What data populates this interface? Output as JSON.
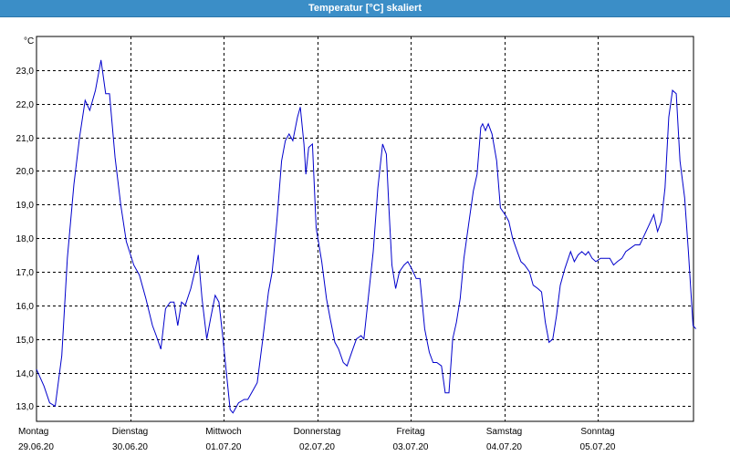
{
  "window": {
    "title": "Temperatur [°C] skaliert"
  },
  "chart_data": {
    "type": "line",
    "title": "Temperatur [°C] skaliert",
    "ylabel": "°C",
    "xlabel": "",
    "ylim": [
      12.55,
      24.0
    ],
    "xlim": [
      0,
      7.0
    ],
    "y_ticks": [
      "13,0",
      "14,0",
      "15,0",
      "16,0",
      "17,0",
      "18,0",
      "19,0",
      "20,0",
      "21,0",
      "22,0",
      "23,0"
    ],
    "x_ticks": [
      {
        "day": "Montag",
        "date": "29.06.20"
      },
      {
        "day": "Dienstag",
        "date": "30.06.20"
      },
      {
        "day": "Mittwoch",
        "date": "01.07.20"
      },
      {
        "day": "Donnerstag",
        "date": "02.07.20"
      },
      {
        "day": "Freitag",
        "date": "03.07.20"
      },
      {
        "day": "Samstag",
        "date": "04.07.20"
      },
      {
        "day": "Sonntag",
        "date": "05.07.20"
      }
    ],
    "grid": true,
    "colors": {
      "line": "#0000cc",
      "grid": "#000000"
    },
    "series": [
      {
        "points": [
          [
            0.0,
            14.1
          ],
          [
            0.08,
            13.6
          ],
          [
            0.14,
            13.1
          ],
          [
            0.2,
            13.0
          ],
          [
            0.27,
            14.5
          ],
          [
            0.33,
            17.4
          ],
          [
            0.4,
            19.6
          ],
          [
            0.46,
            21.0
          ],
          [
            0.52,
            22.1
          ],
          [
            0.57,
            21.8
          ],
          [
            0.63,
            22.4
          ],
          [
            0.69,
            23.3
          ],
          [
            0.74,
            22.3
          ],
          [
            0.78,
            22.3
          ],
          [
            0.84,
            20.4
          ],
          [
            0.9,
            19.0
          ],
          [
            0.96,
            17.9
          ],
          [
            1.04,
            17.2
          ],
          [
            1.1,
            16.9
          ],
          [
            1.17,
            16.2
          ],
          [
            1.24,
            15.4
          ],
          [
            1.28,
            15.1
          ],
          [
            1.33,
            14.7
          ],
          [
            1.38,
            15.9
          ],
          [
            1.43,
            16.1
          ],
          [
            1.47,
            16.1
          ],
          [
            1.51,
            15.4
          ],
          [
            1.55,
            16.1
          ],
          [
            1.59,
            16.0
          ],
          [
            1.65,
            16.5
          ],
          [
            1.7,
            17.1
          ],
          [
            1.73,
            17.5
          ],
          [
            1.77,
            16.2
          ],
          [
            1.82,
            15.0
          ],
          [
            1.86,
            15.6
          ],
          [
            1.91,
            16.3
          ],
          [
            1.95,
            16.1
          ],
          [
            1.99,
            15.1
          ],
          [
            2.03,
            14.0
          ],
          [
            2.07,
            12.9
          ],
          [
            2.1,
            12.8
          ],
          [
            2.16,
            13.1
          ],
          [
            2.22,
            13.2
          ],
          [
            2.26,
            13.2
          ],
          [
            2.32,
            13.5
          ],
          [
            2.36,
            13.7
          ],
          [
            2.42,
            15.0
          ],
          [
            2.48,
            16.4
          ],
          [
            2.52,
            17.0
          ],
          [
            2.57,
            18.5
          ],
          [
            2.62,
            20.3
          ],
          [
            2.66,
            20.9
          ],
          [
            2.7,
            21.1
          ],
          [
            2.74,
            20.9
          ],
          [
            2.79,
            21.6
          ],
          [
            2.82,
            21.9
          ],
          [
            2.86,
            20.8
          ],
          [
            2.88,
            19.9
          ],
          [
            2.91,
            20.7
          ],
          [
            2.95,
            20.8
          ],
          [
            2.99,
            18.3
          ],
          [
            3.05,
            17.3
          ],
          [
            3.1,
            16.2
          ],
          [
            3.14,
            15.6
          ],
          [
            3.19,
            14.9
          ],
          [
            3.23,
            14.7
          ],
          [
            3.28,
            14.3
          ],
          [
            3.32,
            14.2
          ],
          [
            3.37,
            14.6
          ],
          [
            3.42,
            15.0
          ],
          [
            3.47,
            15.1
          ],
          [
            3.5,
            15.0
          ],
          [
            3.55,
            16.3
          ],
          [
            3.6,
            17.6
          ],
          [
            3.65,
            19.5
          ],
          [
            3.7,
            20.8
          ],
          [
            3.74,
            20.5
          ],
          [
            3.77,
            18.8
          ],
          [
            3.8,
            17.2
          ],
          [
            3.84,
            16.5
          ],
          [
            3.88,
            17.0
          ],
          [
            3.93,
            17.2
          ],
          [
            3.97,
            17.3
          ],
          [
            4.01,
            17.1
          ],
          [
            4.06,
            16.8
          ],
          [
            4.1,
            16.8
          ],
          [
            4.15,
            15.3
          ],
          [
            4.2,
            14.6
          ],
          [
            4.24,
            14.3
          ],
          [
            4.28,
            14.3
          ],
          [
            4.33,
            14.2
          ],
          [
            4.37,
            13.4
          ],
          [
            4.41,
            13.4
          ],
          [
            4.45,
            15.0
          ],
          [
            4.49,
            15.5
          ],
          [
            4.53,
            16.2
          ],
          [
            4.57,
            17.4
          ],
          [
            4.62,
            18.4
          ],
          [
            4.67,
            19.4
          ],
          [
            4.71,
            19.9
          ],
          [
            4.75,
            21.3
          ],
          [
            4.77,
            21.4
          ],
          [
            4.8,
            21.2
          ],
          [
            4.83,
            21.4
          ],
          [
            4.87,
            21.1
          ],
          [
            4.92,
            20.3
          ],
          [
            4.96,
            18.9
          ],
          [
            5.01,
            18.7
          ],
          [
            5.05,
            18.5
          ],
          [
            5.09,
            18.0
          ],
          [
            5.14,
            17.6
          ],
          [
            5.18,
            17.3
          ],
          [
            5.22,
            17.2
          ],
          [
            5.27,
            17.0
          ],
          [
            5.31,
            16.6
          ],
          [
            5.36,
            16.5
          ],
          [
            5.4,
            16.4
          ],
          [
            5.44,
            15.5
          ],
          [
            5.48,
            14.9
          ],
          [
            5.52,
            15.0
          ],
          [
            5.56,
            15.7
          ],
          [
            5.6,
            16.6
          ],
          [
            5.65,
            17.1
          ],
          [
            5.71,
            17.6
          ],
          [
            5.75,
            17.3
          ],
          [
            5.79,
            17.5
          ],
          [
            5.83,
            17.6
          ],
          [
            5.87,
            17.5
          ],
          [
            5.9,
            17.6
          ],
          [
            5.94,
            17.4
          ],
          [
            5.98,
            17.3
          ],
          [
            6.03,
            17.4
          ],
          [
            6.08,
            17.4
          ],
          [
            6.13,
            17.4
          ],
          [
            6.17,
            17.2
          ],
          [
            6.21,
            17.3
          ],
          [
            6.26,
            17.4
          ],
          [
            6.3,
            17.6
          ],
          [
            6.35,
            17.7
          ],
          [
            6.4,
            17.8
          ],
          [
            6.45,
            17.8
          ],
          [
            6.5,
            18.1
          ],
          [
            6.55,
            18.4
          ],
          [
            6.6,
            18.7
          ],
          [
            6.64,
            18.2
          ],
          [
            6.68,
            18.5
          ],
          [
            6.72,
            19.5
          ],
          [
            6.76,
            21.6
          ],
          [
            6.8,
            22.4
          ],
          [
            6.84,
            22.3
          ],
          [
            6.88,
            20.3
          ],
          [
            6.93,
            19.2
          ],
          [
            6.97,
            17.6
          ],
          [
            7.02,
            15.4
          ],
          [
            7.05,
            15.3
          ]
        ]
      }
    ]
  }
}
